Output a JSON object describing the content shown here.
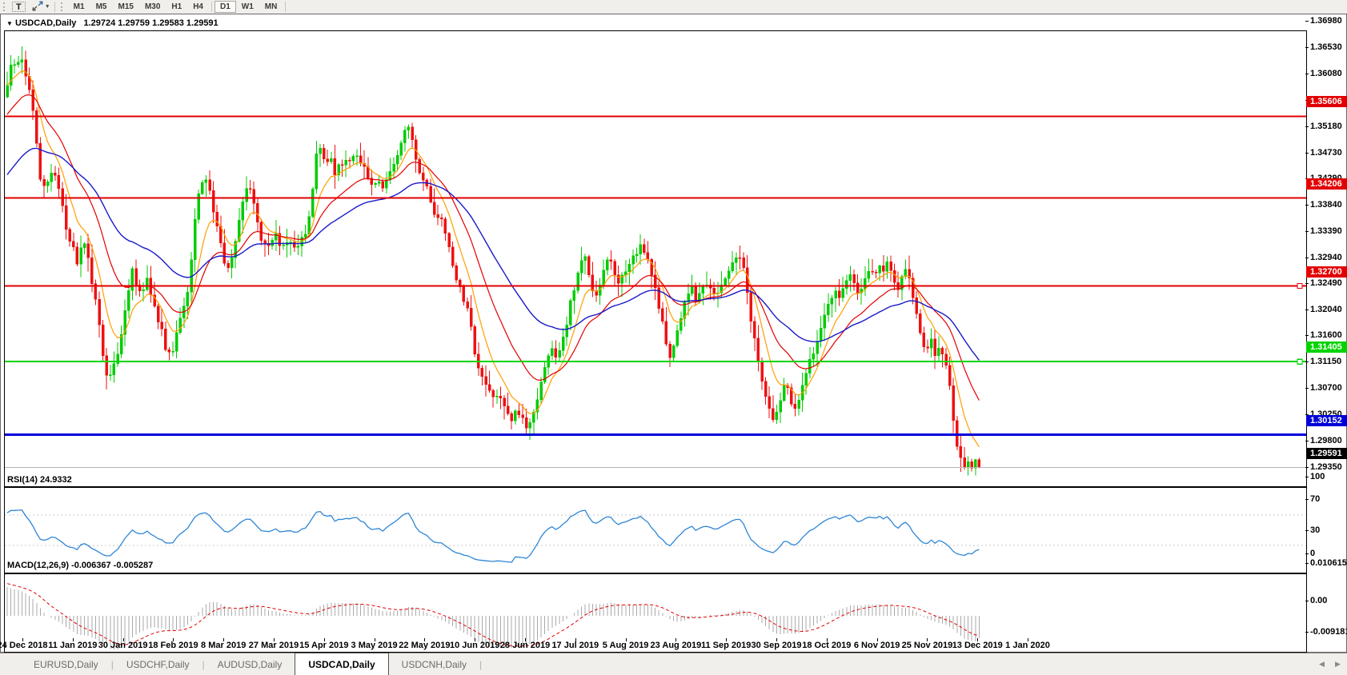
{
  "toolbar": {
    "text_tool": "T",
    "timeframes": [
      "M1",
      "M5",
      "M15",
      "M30",
      "H1",
      "H4",
      "D1",
      "W1",
      "MN"
    ],
    "active_timeframe": "D1"
  },
  "chart": {
    "title_symbol": "USDCAD,Daily",
    "title_ohlc": "1.29724 1.29759 1.29583 1.29591",
    "rsi_label": "RSI(14) 24.9332",
    "macd_label": "MACD(12,26,9) -0.006367 -0.005287"
  },
  "tabs": {
    "items": [
      "EURUSD,Daily",
      "USDCHF,Daily",
      "AUDUSD,Daily",
      "USDCAD,Daily",
      "USDCNH,Daily"
    ],
    "active_index": 3
  },
  "chart_data": {
    "type": "candlestick",
    "symbol": "USDCAD",
    "timeframe": "Daily",
    "current_bar": {
      "open": 1.29724,
      "high": 1.29759,
      "low": 1.29583,
      "close": 1.29591
    },
    "price_range_top": 1.37062,
    "price_range_bottom": 1.29272,
    "price_axis_ticks": [
      "1.36980",
      "1.36530",
      "1.36080",
      "1.35630",
      "1.35180",
      "1.34730",
      "1.34290",
      "1.33840",
      "1.33390",
      "1.32940",
      "1.32490",
      "1.32040",
      "1.31600",
      "1.31150",
      "1.30700",
      "1.30250",
      "1.29800",
      "1.29350"
    ],
    "horizontal_lines": [
      {
        "price": 1.35606,
        "label": "1.35606",
        "color": "#e20000",
        "width": 2,
        "handle": false,
        "text": "#ffffff"
      },
      {
        "price": 1.34206,
        "label": "1.34206",
        "color": "#e20000",
        "width": 2,
        "handle": false,
        "text": "#ffffff"
      },
      {
        "price": 1.327,
        "label": "1.32700",
        "color": "#e20000",
        "width": 2,
        "handle": true,
        "text": "#ffffff"
      },
      {
        "price": 1.31405,
        "label": "1.31405",
        "color": "#00d300",
        "width": 2,
        "handle": true,
        "text": "#ffffff"
      },
      {
        "price": 1.30152,
        "label": "1.30152",
        "color": "#0000d9",
        "width": 3,
        "handle": false,
        "text": "#ffffff"
      },
      {
        "price": 1.29591,
        "label": "1.29591",
        "color": "#b4b4b4",
        "width": 1,
        "handle": false,
        "text": "#ffffff",
        "label_bg": "#000000",
        "current": true
      }
    ],
    "date_ticks": [
      "24 Dec 2018",
      "11 Jan 2019",
      "30 Jan 2019",
      "18 Feb 2019",
      "8 Mar 2019",
      "27 Mar 2019",
      "15 Apr 2019",
      "3 May 2019",
      "22 May 2019",
      "10 Jun 2019",
      "28 Jun 2019",
      "17 Jul 2019",
      "5 Aug 2019",
      "23 Aug 2019",
      "11 Sep 2019",
      "30 Sep 2019",
      "18 Oct 2019",
      "6 Nov 2019",
      "25 Nov 2019",
      "13 Dec 2019",
      "1 Jan 2020"
    ],
    "candle_colors": {
      "up": "#00cc00",
      "down": "#ee1111"
    },
    "moving_averages": [
      {
        "name": "fast",
        "period": 8,
        "color": "#ff9e00",
        "seed_offset": 0,
        "width": 1.2
      },
      {
        "name": "medium",
        "period": 20,
        "color": "#e20000",
        "seed_offset": -0.0055,
        "width": 1.2
      },
      {
        "name": "slow",
        "period": 45,
        "color": "#1919c8",
        "seed_offset": -0.016,
        "width": 1.4
      }
    ],
    "rsi": {
      "period": 14,
      "value": 24.9332,
      "levels": [
        70,
        30
      ],
      "scale_values": [
        100,
        70,
        30,
        0
      ],
      "scale_labels": [
        "100",
        "70",
        "30",
        "0"
      ],
      "color": "#2e86d6",
      "level_color": "#c8c8c8"
    },
    "macd": {
      "fast": 12,
      "slow": 26,
      "signal_period": 9,
      "main": -0.006367,
      "signal": -0.005287,
      "scale_values": [
        0.010615,
        0,
        -0.009181
      ],
      "scale_labels": [
        "0.010615",
        "0.00",
        "-0.009181"
      ],
      "histogram_color": "#a9a9a9",
      "signal_color": "#e20000"
    },
    "close_path": [
      [
        8,
        1.3615
      ],
      [
        14,
        1.365
      ],
      [
        20,
        1.3642
      ],
      [
        26,
        1.3662
      ],
      [
        32,
        1.3628
      ],
      [
        38,
        1.3595
      ],
      [
        44,
        1.352
      ],
      [
        50,
        1.3452
      ],
      [
        56,
        1.3438
      ],
      [
        62,
        1.3465
      ],
      [
        68,
        1.346
      ],
      [
        74,
        1.3425
      ],
      [
        80,
        1.3378
      ],
      [
        88,
        1.334
      ],
      [
        96,
        1.3312
      ],
      [
        104,
        1.335
      ],
      [
        110,
        1.332
      ],
      [
        116,
        1.3255
      ],
      [
        122,
        1.322
      ],
      [
        128,
        1.315
      ],
      [
        134,
        1.3112
      ],
      [
        140,
        1.3135
      ],
      [
        146,
        1.316
      ],
      [
        152,
        1.3188
      ],
      [
        158,
        1.3255
      ],
      [
        164,
        1.3295
      ],
      [
        170,
        1.3268
      ],
      [
        176,
        1.3248
      ],
      [
        182,
        1.3285
      ],
      [
        188,
        1.3255
      ],
      [
        194,
        1.3225
      ],
      [
        200,
        1.32
      ],
      [
        206,
        1.3165
      ],
      [
        212,
        1.3148
      ],
      [
        218,
        1.3175
      ],
      [
        224,
        1.321
      ],
      [
        230,
        1.3235
      ],
      [
        236,
        1.329
      ],
      [
        242,
        1.338
      ],
      [
        248,
        1.343
      ],
      [
        254,
        1.3465
      ],
      [
        260,
        1.344
      ],
      [
        266,
        1.34
      ],
      [
        272,
        1.337
      ],
      [
        278,
        1.332
      ],
      [
        284,
        1.3295
      ],
      [
        290,
        1.332
      ],
      [
        296,
        1.3365
      ],
      [
        302,
        1.341
      ],
      [
        308,
        1.3442
      ],
      [
        314,
        1.342
      ],
      [
        320,
        1.338
      ],
      [
        326,
        1.3352
      ],
      [
        334,
        1.3335
      ],
      [
        342,
        1.336
      ],
      [
        350,
        1.3342
      ],
      [
        358,
        1.3352
      ],
      [
        366,
        1.3334
      ],
      [
        374,
        1.3342
      ],
      [
        382,
        1.3365
      ],
      [
        388,
        1.342
      ],
      [
        394,
        1.3492
      ],
      [
        400,
        1.3505
      ],
      [
        406,
        1.3478
      ],
      [
        412,
        1.3488
      ],
      [
        418,
        1.3462
      ],
      [
        424,
        1.3478
      ],
      [
        430,
        1.3492
      ],
      [
        436,
        1.348
      ],
      [
        442,
        1.3498
      ],
      [
        448,
        1.3482
      ],
      [
        454,
        1.3472
      ],
      [
        460,
        1.3455
      ],
      [
        466,
        1.3442
      ],
      [
        472,
        1.3448
      ],
      [
        478,
        1.344
      ],
      [
        484,
        1.3452
      ],
      [
        490,
        1.347
      ],
      [
        496,
        1.3495
      ],
      [
        502,
        1.3528
      ],
      [
        508,
        1.3551
      ],
      [
        512,
        1.3535
      ],
      [
        516,
        1.3498
      ],
      [
        520,
        1.3474
      ],
      [
        526,
        1.3448
      ],
      [
        532,
        1.3438
      ],
      [
        538,
        1.3415
      ],
      [
        544,
        1.3378
      ],
      [
        550,
        1.3395
      ],
      [
        556,
        1.336
      ],
      [
        562,
        1.3322
      ],
      [
        568,
        1.3288
      ],
      [
        574,
        1.3262
      ],
      [
        580,
        1.324
      ],
      [
        586,
        1.3218
      ],
      [
        592,
        1.3155
      ],
      [
        598,
        1.3122
      ],
      [
        604,
        1.3105
      ],
      [
        610,
        1.3088
      ],
      [
        616,
        1.3072
      ],
      [
        622,
        1.3095
      ],
      [
        628,
        1.3068
      ],
      [
        634,
        1.3052
      ],
      [
        640,
        1.304
      ],
      [
        646,
        1.306
      ],
      [
        652,
        1.3042
      ],
      [
        658,
        1.3022
      ],
      [
        664,
        1.3048
      ],
      [
        670,
        1.308
      ],
      [
        676,
        1.311
      ],
      [
        682,
        1.3145
      ],
      [
        688,
        1.3172
      ],
      [
        694,
        1.3148
      ],
      [
        700,
        1.3165
      ],
      [
        706,
        1.3195
      ],
      [
        712,
        1.324
      ],
      [
        718,
        1.3275
      ],
      [
        724,
        1.331
      ],
      [
        730,
        1.3322
      ],
      [
        736,
        1.3288
      ],
      [
        742,
        1.3248
      ],
      [
        748,
        1.3262
      ],
      [
        754,
        1.3295
      ],
      [
        760,
        1.3318
      ],
      [
        766,
        1.3296
      ],
      [
        772,
        1.3268
      ],
      [
        778,
        1.3288
      ],
      [
        784,
        1.3305
      ],
      [
        790,
        1.3322
      ],
      [
        796,
        1.333
      ],
      [
        802,
        1.334
      ],
      [
        808,
        1.3318
      ],
      [
        814,
        1.3285
      ],
      [
        820,
        1.3248
      ],
      [
        826,
        1.3212
      ],
      [
        832,
        1.3165
      ],
      [
        838,
        1.3148
      ],
      [
        844,
        1.318
      ],
      [
        850,
        1.3222
      ],
      [
        856,
        1.3258
      ],
      [
        862,
        1.327
      ],
      [
        868,
        1.3248
      ],
      [
        874,
        1.3262
      ],
      [
        880,
        1.3278
      ],
      [
        886,
        1.3262
      ],
      [
        892,
        1.3248
      ],
      [
        898,
        1.3262
      ],
      [
        904,
        1.3282
      ],
      [
        910,
        1.3295
      ],
      [
        916,
        1.3318
      ],
      [
        922,
        1.333
      ],
      [
        928,
        1.3298
      ],
      [
        934,
        1.3248
      ],
      [
        940,
        1.3188
      ],
      [
        946,
        1.3148
      ],
      [
        952,
        1.3098
      ],
      [
        958,
        1.3062
      ],
      [
        964,
        1.304
      ],
      [
        970,
        1.3052
      ],
      [
        976,
        1.3088
      ],
      [
        982,
        1.311
      ],
      [
        988,
        1.3072
      ],
      [
        994,
        1.306
      ],
      [
        1000,
        1.3088
      ],
      [
        1006,
        1.3122
      ],
      [
        1012,
        1.3148
      ],
      [
        1018,
        1.317
      ],
      [
        1024,
        1.3192
      ],
      [
        1030,
        1.3218
      ],
      [
        1036,
        1.3245
      ],
      [
        1042,
        1.3262
      ],
      [
        1048,
        1.3248
      ],
      [
        1054,
        1.3272
      ],
      [
        1060,
        1.3288
      ],
      [
        1066,
        1.3272
      ],
      [
        1072,
        1.3258
      ],
      [
        1078,
        1.3278
      ],
      [
        1084,
        1.3292
      ],
      [
        1090,
        1.3288
      ],
      [
        1096,
        1.3302
      ],
      [
        1102,
        1.3295
      ],
      [
        1108,
        1.3308
      ],
      [
        1114,
        1.3285
      ],
      [
        1120,
        1.3262
      ],
      [
        1126,
        1.3288
      ],
      [
        1132,
        1.3302
      ],
      [
        1138,
        1.3265
      ],
      [
        1144,
        1.3225
      ],
      [
        1150,
        1.3185
      ],
      [
        1156,
        1.3162
      ],
      [
        1162,
        1.3178
      ],
      [
        1168,
        1.3152
      ],
      [
        1174,
        1.3168
      ],
      [
        1180,
        1.3142
      ],
      [
        1186,
        1.3095
      ],
      [
        1192,
        1.3022
      ],
      [
        1198,
        1.2978
      ],
      [
        1204,
        1.2962
      ],
      [
        1210,
        1.2972
      ],
      [
        1216,
        1.2958
      ],
      [
        1222,
        1.2959
      ]
    ]
  }
}
